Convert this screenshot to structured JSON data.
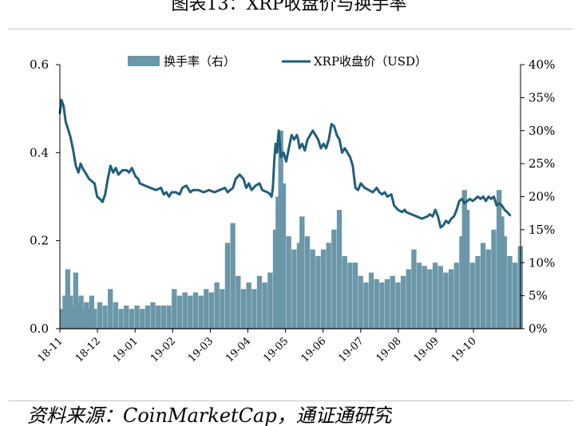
{
  "title": "图表13：XRP收盘价与换手率",
  "source": "资料来源：CoinMarketCap，通证通研究",
  "colors": {
    "bar": "#6b97a8",
    "line": "#1f5f7a"
  },
  "chart_data": {
    "type": "bar+line",
    "legend_position": "top-center",
    "grid": false,
    "x_tick_labels": [
      "18-11",
      "18-12",
      "19-01",
      "19-02",
      "19-03",
      "19-04",
      "19-05",
      "19-06",
      "19-07",
      "19-08",
      "19-09",
      "19-10"
    ],
    "y_left": {
      "ticks": [
        "0.0",
        "0.2",
        "0.4",
        "0.6"
      ],
      "range": [
        0,
        0.6
      ]
    },
    "y_right": {
      "ticks": [
        "0%",
        "5%",
        "10%",
        "15%",
        "20%",
        "25%",
        "30%",
        "35%",
        "40%"
      ],
      "range": [
        0,
        40
      ]
    },
    "series": [
      {
        "name": "换手率（右）",
        "type": "bar",
        "axis": "right",
        "points": [
          [
            0,
            3
          ],
          [
            0.1,
            5
          ],
          [
            0.2,
            9
          ],
          [
            0.3,
            5
          ],
          [
            0.4,
            3.5
          ],
          [
            0.5,
            8.5
          ],
          [
            0.6,
            4
          ],
          [
            0.7,
            5
          ],
          [
            0.8,
            3
          ],
          [
            0.9,
            4
          ],
          [
            1.0,
            3
          ],
          [
            1.1,
            5
          ],
          [
            1.2,
            3
          ],
          [
            1.4,
            4
          ],
          [
            1.6,
            3.5
          ],
          [
            1.8,
            6
          ],
          [
            2.0,
            4
          ],
          [
            2.2,
            3
          ],
          [
            2.4,
            3.5
          ],
          [
            2.6,
            3
          ],
          [
            2.8,
            3.5
          ],
          [
            3.0,
            3
          ],
          [
            3.2,
            3.5
          ],
          [
            3.4,
            4
          ],
          [
            3.6,
            3.5
          ],
          [
            3.8,
            3.5
          ],
          [
            4.0,
            3.5
          ],
          [
            4.2,
            6
          ],
          [
            4.4,
            5
          ],
          [
            4.6,
            5.5
          ],
          [
            4.8,
            5
          ],
          [
            5.0,
            5.5
          ],
          [
            5.2,
            5
          ],
          [
            5.4,
            6
          ],
          [
            5.6,
            5.5
          ],
          [
            5.8,
            7
          ],
          [
            6.0,
            6
          ],
          [
            6.2,
            13
          ],
          [
            6.4,
            16
          ],
          [
            6.6,
            8
          ],
          [
            6.8,
            6
          ],
          [
            7.0,
            7
          ],
          [
            7.2,
            6
          ],
          [
            7.4,
            8
          ],
          [
            7.6,
            7
          ],
          [
            7.8,
            8.5
          ],
          [
            8.0,
            15
          ],
          [
            8.1,
            20
          ],
          [
            8.2,
            30
          ],
          [
            8.3,
            22
          ],
          [
            8.5,
            14
          ],
          [
            8.7,
            12
          ],
          [
            8.9,
            13
          ],
          [
            9.0,
            17
          ],
          [
            9.2,
            14
          ],
          [
            9.4,
            12
          ],
          [
            9.6,
            11
          ],
          [
            9.8,
            12
          ],
          [
            10.0,
            13
          ],
          [
            10.2,
            15
          ],
          [
            10.4,
            18
          ],
          [
            10.6,
            11
          ],
          [
            10.8,
            10
          ],
          [
            11.0,
            10
          ],
          [
            11.2,
            8
          ],
          [
            11.4,
            7
          ],
          [
            11.6,
            8.5
          ],
          [
            11.8,
            7.5
          ],
          [
            12.0,
            7
          ],
          [
            12.2,
            7.5
          ],
          [
            12.4,
            8
          ],
          [
            12.6,
            7
          ],
          [
            12.8,
            8
          ],
          [
            13.0,
            9
          ],
          [
            13.2,
            12
          ],
          [
            13.4,
            10
          ],
          [
            13.6,
            9.5
          ],
          [
            13.8,
            9
          ],
          [
            14.0,
            10
          ],
          [
            14.2,
            9.5
          ],
          [
            14.4,
            8.5
          ],
          [
            14.6,
            9
          ],
          [
            14.8,
            10
          ],
          [
            15.0,
            14
          ],
          [
            15.1,
            21
          ],
          [
            15.2,
            18
          ],
          [
            15.4,
            10
          ],
          [
            15.6,
            11
          ],
          [
            15.8,
            13
          ],
          [
            16.0,
            12
          ],
          [
            16.2,
            15
          ],
          [
            16.4,
            21
          ],
          [
            16.5,
            17
          ],
          [
            16.6,
            14
          ],
          [
            16.8,
            11
          ],
          [
            17.0,
            10
          ],
          [
            17.2,
            12.5
          ]
        ]
      },
      {
        "name": "XRP收盘价（USD）",
        "type": "line",
        "axis": "left",
        "points": [
          [
            0,
            0.49
          ],
          [
            0.06,
            0.52
          ],
          [
            0.14,
            0.505
          ],
          [
            0.22,
            0.47
          ],
          [
            0.3,
            0.455
          ],
          [
            0.4,
            0.435
          ],
          [
            0.5,
            0.405
          ],
          [
            0.6,
            0.37
          ],
          [
            0.7,
            0.355
          ],
          [
            0.78,
            0.375
          ],
          [
            0.85,
            0.365
          ],
          [
            0.95,
            0.355
          ],
          [
            1.0,
            0.35
          ],
          [
            1.1,
            0.34
          ],
          [
            1.2,
            0.335
          ],
          [
            1.3,
            0.33
          ],
          [
            1.4,
            0.3
          ],
          [
            1.5,
            0.295
          ],
          [
            1.6,
            0.288
          ],
          [
            1.7,
            0.305
          ],
          [
            1.8,
            0.34
          ],
          [
            1.9,
            0.37
          ],
          [
            2.0,
            0.355
          ],
          [
            2.1,
            0.365
          ],
          [
            2.2,
            0.35
          ],
          [
            2.35,
            0.36
          ],
          [
            2.5,
            0.36
          ],
          [
            2.6,
            0.355
          ],
          [
            2.7,
            0.365
          ],
          [
            2.85,
            0.345
          ],
          [
            2.95,
            0.34
          ],
          [
            3.0,
            0.33
          ],
          [
            3.2,
            0.325
          ],
          [
            3.4,
            0.32
          ],
          [
            3.6,
            0.315
          ],
          [
            3.8,
            0.32
          ],
          [
            3.9,
            0.305
          ],
          [
            4.0,
            0.31
          ],
          [
            4.1,
            0.3
          ],
          [
            4.2,
            0.31
          ],
          [
            4.35,
            0.31
          ],
          [
            4.5,
            0.305
          ],
          [
            4.6,
            0.32
          ],
          [
            4.75,
            0.325
          ],
          [
            4.9,
            0.31
          ],
          [
            5.0,
            0.315
          ],
          [
            5.2,
            0.315
          ],
          [
            5.4,
            0.31
          ],
          [
            5.6,
            0.315
          ],
          [
            5.8,
            0.31
          ],
          [
            6.0,
            0.315
          ],
          [
            6.2,
            0.32
          ],
          [
            6.3,
            0.31
          ],
          [
            6.5,
            0.32
          ],
          [
            6.6,
            0.34
          ],
          [
            6.75,
            0.35
          ],
          [
            6.9,
            0.34
          ],
          [
            7.0,
            0.32
          ],
          [
            7.1,
            0.33
          ],
          [
            7.2,
            0.315
          ],
          [
            7.35,
            0.325
          ],
          [
            7.5,
            0.33
          ],
          [
            7.6,
            0.315
          ],
          [
            7.8,
            0.31
          ],
          [
            7.9,
            0.305
          ],
          [
            7.95,
            0.3
          ],
          [
            8.0,
            0.32
          ],
          [
            8.05,
            0.38
          ],
          [
            8.1,
            0.42
          ],
          [
            8.15,
            0.4
          ],
          [
            8.22,
            0.45
          ],
          [
            8.3,
            0.39
          ],
          [
            8.4,
            0.4
          ],
          [
            8.5,
            0.38
          ],
          [
            8.6,
            0.41
          ],
          [
            8.7,
            0.44
          ],
          [
            8.8,
            0.43
          ],
          [
            8.9,
            0.44
          ],
          [
            8.95,
            0.43
          ],
          [
            9.0,
            0.41
          ],
          [
            9.1,
            0.42
          ],
          [
            9.2,
            0.405
          ],
          [
            9.3,
            0.43
          ],
          [
            9.4,
            0.44
          ],
          [
            9.5,
            0.45
          ],
          [
            9.6,
            0.44
          ],
          [
            9.7,
            0.43
          ],
          [
            9.8,
            0.41
          ],
          [
            9.9,
            0.42
          ],
          [
            10.0,
            0.41
          ],
          [
            10.1,
            0.43
          ],
          [
            10.2,
            0.465
          ],
          [
            10.3,
            0.46
          ],
          [
            10.4,
            0.44
          ],
          [
            10.5,
            0.43
          ],
          [
            10.6,
            0.4
          ],
          [
            10.7,
            0.41
          ],
          [
            10.8,
            0.4
          ],
          [
            10.9,
            0.39
          ],
          [
            11.0,
            0.37
          ],
          [
            11.05,
            0.345
          ],
          [
            11.1,
            0.32
          ],
          [
            11.2,
            0.315
          ],
          [
            11.3,
            0.33
          ],
          [
            11.45,
            0.32
          ],
          [
            11.6,
            0.315
          ],
          [
            11.75,
            0.31
          ],
          [
            11.9,
            0.32
          ],
          [
            12.0,
            0.31
          ],
          [
            12.1,
            0.305
          ],
          [
            12.2,
            0.31
          ],
          [
            12.3,
            0.3
          ],
          [
            12.45,
            0.305
          ],
          [
            12.55,
            0.28
          ],
          [
            12.7,
            0.27
          ],
          [
            12.85,
            0.265
          ],
          [
            12.95,
            0.27
          ],
          [
            13.0,
            0.265
          ],
          [
            13.2,
            0.26
          ],
          [
            13.4,
            0.255
          ],
          [
            13.6,
            0.25
          ],
          [
            13.8,
            0.255
          ],
          [
            13.9,
            0.26
          ],
          [
            14.0,
            0.255
          ],
          [
            14.1,
            0.27
          ],
          [
            14.2,
            0.255
          ],
          [
            14.3,
            0.23
          ],
          [
            14.4,
            0.235
          ],
          [
            14.5,
            0.245
          ],
          [
            14.6,
            0.24
          ],
          [
            14.7,
            0.25
          ],
          [
            14.8,
            0.255
          ],
          [
            14.9,
            0.27
          ],
          [
            15.0,
            0.29
          ],
          [
            15.1,
            0.295
          ],
          [
            15.2,
            0.285
          ],
          [
            15.3,
            0.29
          ],
          [
            15.4,
            0.295
          ],
          [
            15.5,
            0.29
          ],
          [
            15.6,
            0.295
          ],
          [
            15.7,
            0.3
          ],
          [
            15.8,
            0.295
          ],
          [
            15.9,
            0.3
          ],
          [
            16.0,
            0.29
          ],
          [
            16.1,
            0.3
          ],
          [
            16.2,
            0.295
          ],
          [
            16.3,
            0.3
          ],
          [
            16.4,
            0.28
          ],
          [
            16.5,
            0.285
          ],
          [
            16.6,
            0.28
          ],
          [
            16.7,
            0.27
          ],
          [
            16.8,
            0.265
          ],
          [
            16.9,
            0.258
          ]
        ]
      }
    ]
  }
}
